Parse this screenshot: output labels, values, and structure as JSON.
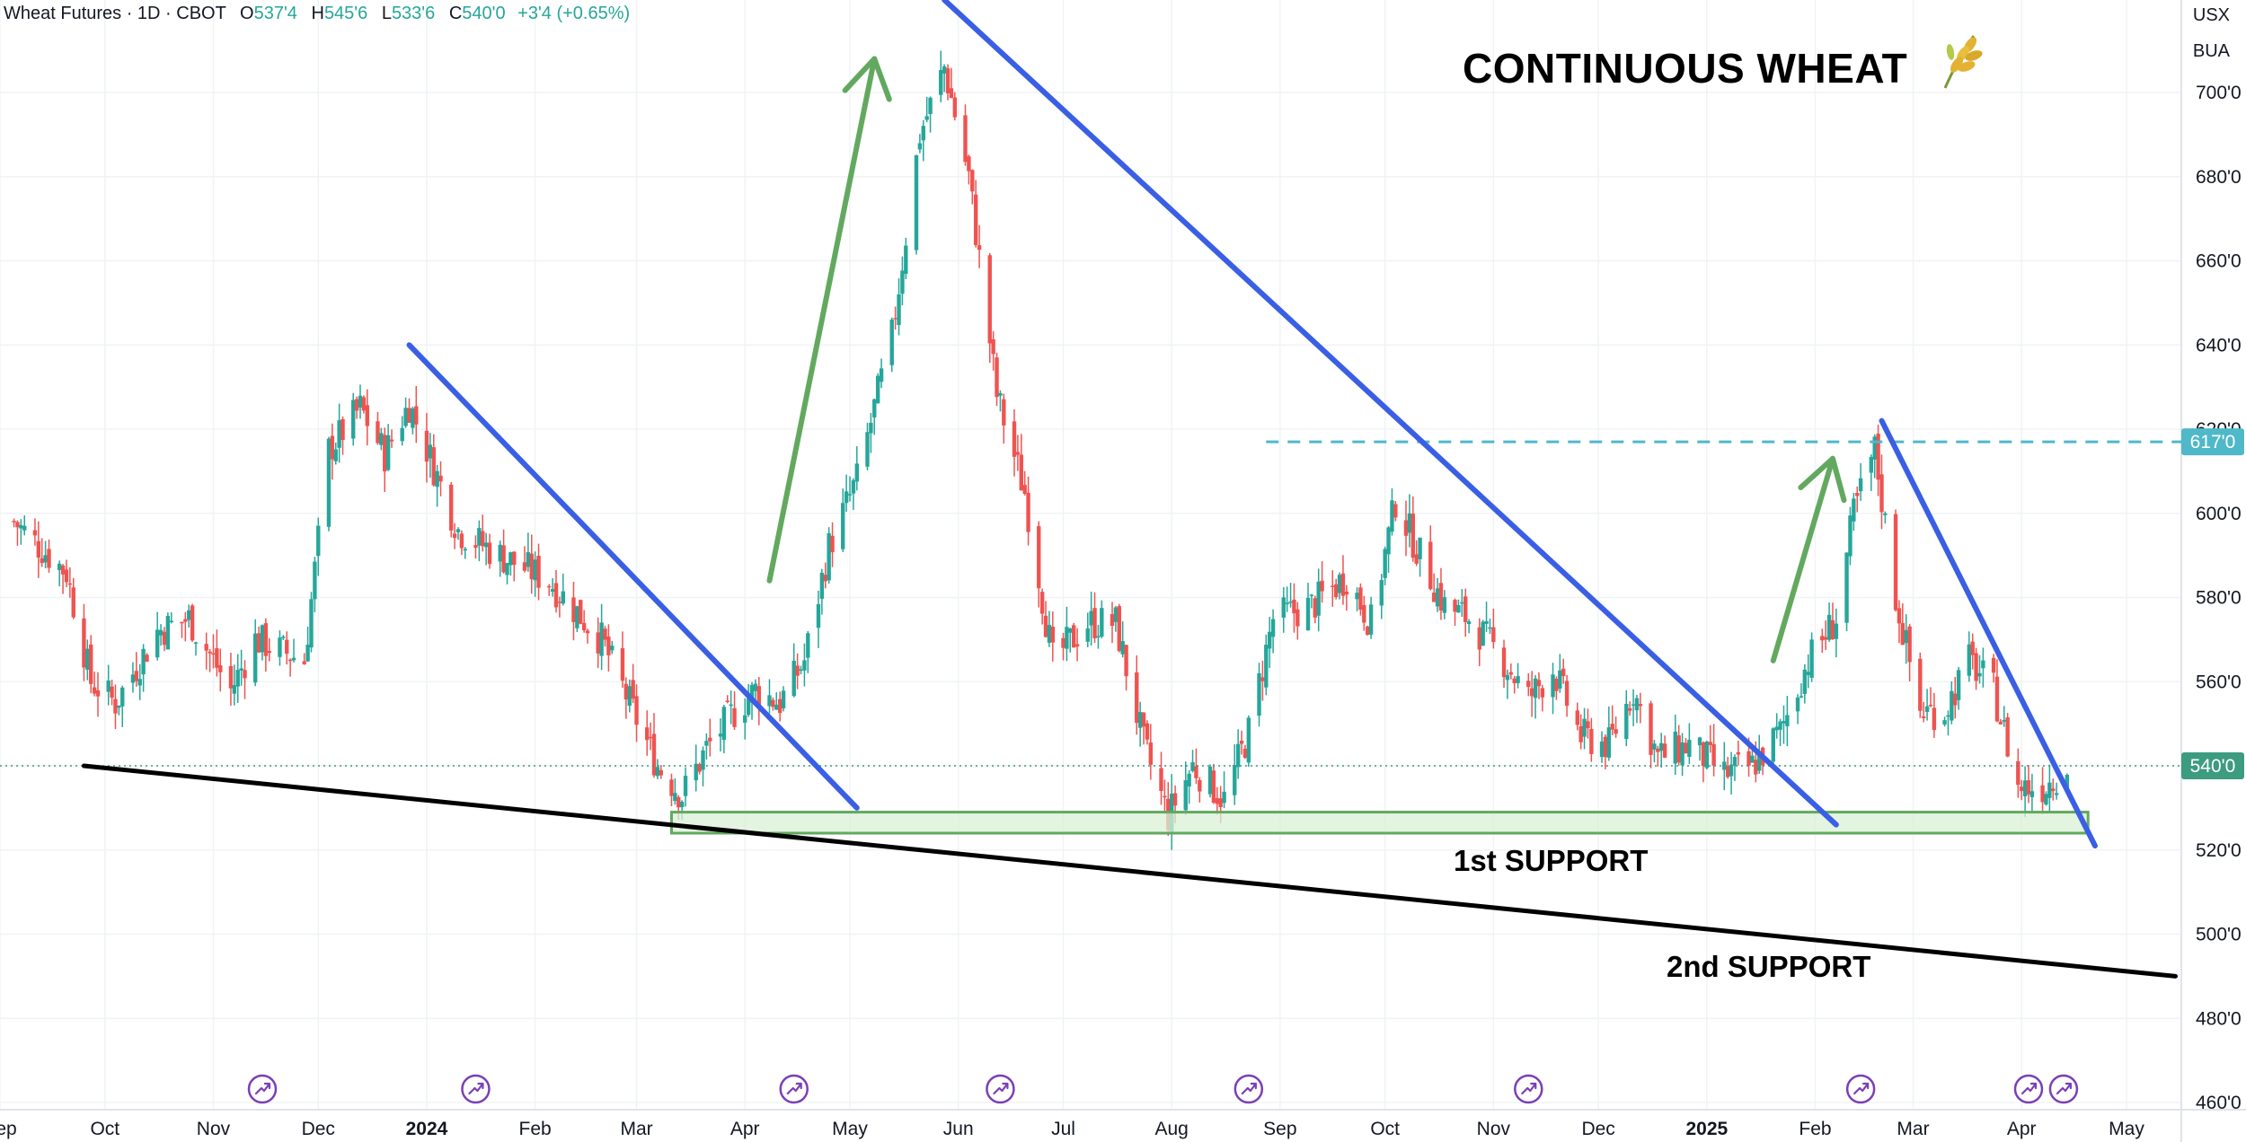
{
  "legend": {
    "symbol": "Wheat Futures · 1D · CBOT",
    "open_label": "O",
    "open": "537'4",
    "high_label": "H",
    "high": "545'6",
    "low_label": "L",
    "low": "533'6",
    "close_label": "C",
    "close": "540'0",
    "change": "+3'4 (+0.65%)"
  },
  "currency_label": "USX",
  "unit_label": "BUA",
  "title": "CONTINUOUS WHEAT",
  "title_icon": "wheat-icon",
  "annotations": {
    "first_support": "1st SUPPORT",
    "second_support": "2nd SUPPORT"
  },
  "chart_data": {
    "type": "candlestick",
    "title": "CONTINUOUS WHEAT",
    "ylim": [
      460,
      728
    ],
    "y_ticks": [
      "460'0",
      "480'0",
      "500'0",
      "520'0",
      "540'0",
      "560'0",
      "580'0",
      "600'0",
      "620'0",
      "640'0",
      "660'0",
      "680'0",
      "700'0"
    ],
    "x_ticks": [
      "Sep",
      "Oct",
      "Nov",
      "Dec",
      "2024",
      "Feb",
      "Mar",
      "Apr",
      "May",
      "Jun",
      "Jul",
      "Aug",
      "Sep",
      "Oct",
      "Nov",
      "Dec",
      "2025",
      "Feb",
      "Mar",
      "Apr",
      "May"
    ],
    "bold_x_ticks": [
      "2024",
      "2025"
    ],
    "price_labels": [
      {
        "value": 617,
        "text": "617'0",
        "color": "#4fb8c9"
      },
      {
        "value": 540,
        "text": "540'0",
        "color": "#3d9b80"
      }
    ],
    "close_anchors": [
      [
        "2023-09-05",
        598
      ],
      [
        "2023-09-20",
        586
      ],
      [
        "2023-09-27",
        560
      ],
      [
        "2023-10-04",
        555
      ],
      [
        "2023-10-16",
        572
      ],
      [
        "2023-10-25",
        575
      ],
      [
        "2023-11-06",
        558
      ],
      [
        "2023-11-13",
        570
      ],
      [
        "2023-11-27",
        565
      ],
      [
        "2023-12-04",
        615
      ],
      [
        "2023-12-13",
        625
      ],
      [
        "2023-12-20",
        614
      ],
      [
        "2023-12-27",
        626
      ],
      [
        "2024-01-10",
        596
      ],
      [
        "2024-01-22",
        590
      ],
      [
        "2024-02-05",
        584
      ],
      [
        "2024-02-20",
        570
      ],
      [
        "2024-02-29",
        553
      ],
      [
        "2024-03-07",
        540
      ],
      [
        "2024-03-14",
        533
      ],
      [
        "2024-03-21",
        544
      ],
      [
        "2024-03-28",
        552
      ],
      [
        "2024-04-04",
        558
      ],
      [
        "2024-04-11",
        555
      ],
      [
        "2024-04-18",
        565
      ],
      [
        "2024-04-25",
        592
      ],
      [
        "2024-05-03",
        608
      ],
      [
        "2024-05-13",
        642
      ],
      [
        "2024-05-21",
        690
      ],
      [
        "2024-05-28",
        706
      ],
      [
        "2024-06-04",
        680
      ],
      [
        "2024-06-12",
        628
      ],
      [
        "2024-06-20",
        605
      ],
      [
        "2024-06-28",
        565
      ],
      [
        "2024-07-08",
        574
      ],
      [
        "2024-07-16",
        574
      ],
      [
        "2024-07-24",
        545
      ],
      [
        "2024-07-31",
        528
      ],
      [
        "2024-08-07",
        540
      ],
      [
        "2024-08-16",
        532
      ],
      [
        "2024-08-23",
        548
      ],
      [
        "2024-08-30",
        575
      ],
      [
        "2024-09-10",
        578
      ],
      [
        "2024-09-20",
        585
      ],
      [
        "2024-09-27",
        574
      ],
      [
        "2024-10-04",
        603
      ],
      [
        "2024-10-11",
        590
      ],
      [
        "2024-10-18",
        578
      ],
      [
        "2024-10-25",
        575
      ],
      [
        "2024-11-04",
        565
      ],
      [
        "2024-11-11",
        556
      ],
      [
        "2024-11-18",
        563
      ],
      [
        "2024-11-26",
        547
      ],
      [
        "2024-12-04",
        545
      ],
      [
        "2024-12-11",
        558
      ],
      [
        "2024-12-18",
        542
      ],
      [
        "2024-12-27",
        545
      ],
      [
        "2025-01-06",
        538
      ],
      [
        "2025-01-14",
        540
      ],
      [
        "2025-01-22",
        548
      ],
      [
        "2025-01-30",
        565
      ],
      [
        "2025-02-07",
        575
      ],
      [
        "2025-02-12",
        600
      ],
      [
        "2025-02-18",
        615
      ],
      [
        "2025-02-24",
        580
      ],
      [
        "2025-03-03",
        553
      ],
      [
        "2025-03-10",
        553
      ],
      [
        "2025-03-17",
        565
      ],
      [
        "2025-03-24",
        558
      ],
      [
        "2025-03-31",
        535
      ],
      [
        "2025-04-07",
        535
      ],
      [
        "2025-04-14",
        540
      ]
    ],
    "series": [],
    "drawings": {
      "blue_trendlines": [
        {
          "from": [
            "2023-12-27",
            640
          ],
          "to": [
            "2024-05-03",
            530
          ]
        },
        {
          "from": [
            "2024-05-28",
            722
          ],
          "to": [
            "2025-02-07",
            526
          ]
        },
        {
          "from": [
            "2025-02-20",
            622
          ],
          "to": [
            "2025-04-22",
            521
          ]
        }
      ],
      "black_trendline": {
        "from": [
          "2023-09-25",
          540
        ],
        "to": [
          "2025-05-15",
          490
        ]
      },
      "support_zone": {
        "from": "2024-03-11",
        "to": "2025-04-20",
        "low": 524,
        "high": 529
      },
      "dashed_level": {
        "from": "2024-08-28",
        "to": "2025-05-31",
        "value": 617
      },
      "dotted_level": {
        "value": 540
      },
      "green_arrows": [
        {
          "from": [
            "2024-04-08",
            584
          ],
          "to": [
            "2024-05-08",
            708
          ]
        },
        {
          "from": [
            "2025-01-20",
            565
          ],
          "to": [
            "2025-02-06",
            613
          ]
        }
      ],
      "event_markers": [
        "2023-11-15",
        "2024-01-15",
        "2024-04-15",
        "2024-06-13",
        "2024-08-23",
        "2024-11-11",
        "2025-02-14",
        "2025-04-03",
        "2025-04-13"
      ]
    }
  },
  "colors": {
    "up": "#26a69a",
    "down": "#ef5350",
    "trendline_blue": "#3a5fe5",
    "arrow_green": "#62a95f",
    "support_fill": "#d9f0d5",
    "support_stroke": "#62a95f",
    "dashed_level": "#4fb8c9",
    "event_marker": "#7b3fb5"
  }
}
